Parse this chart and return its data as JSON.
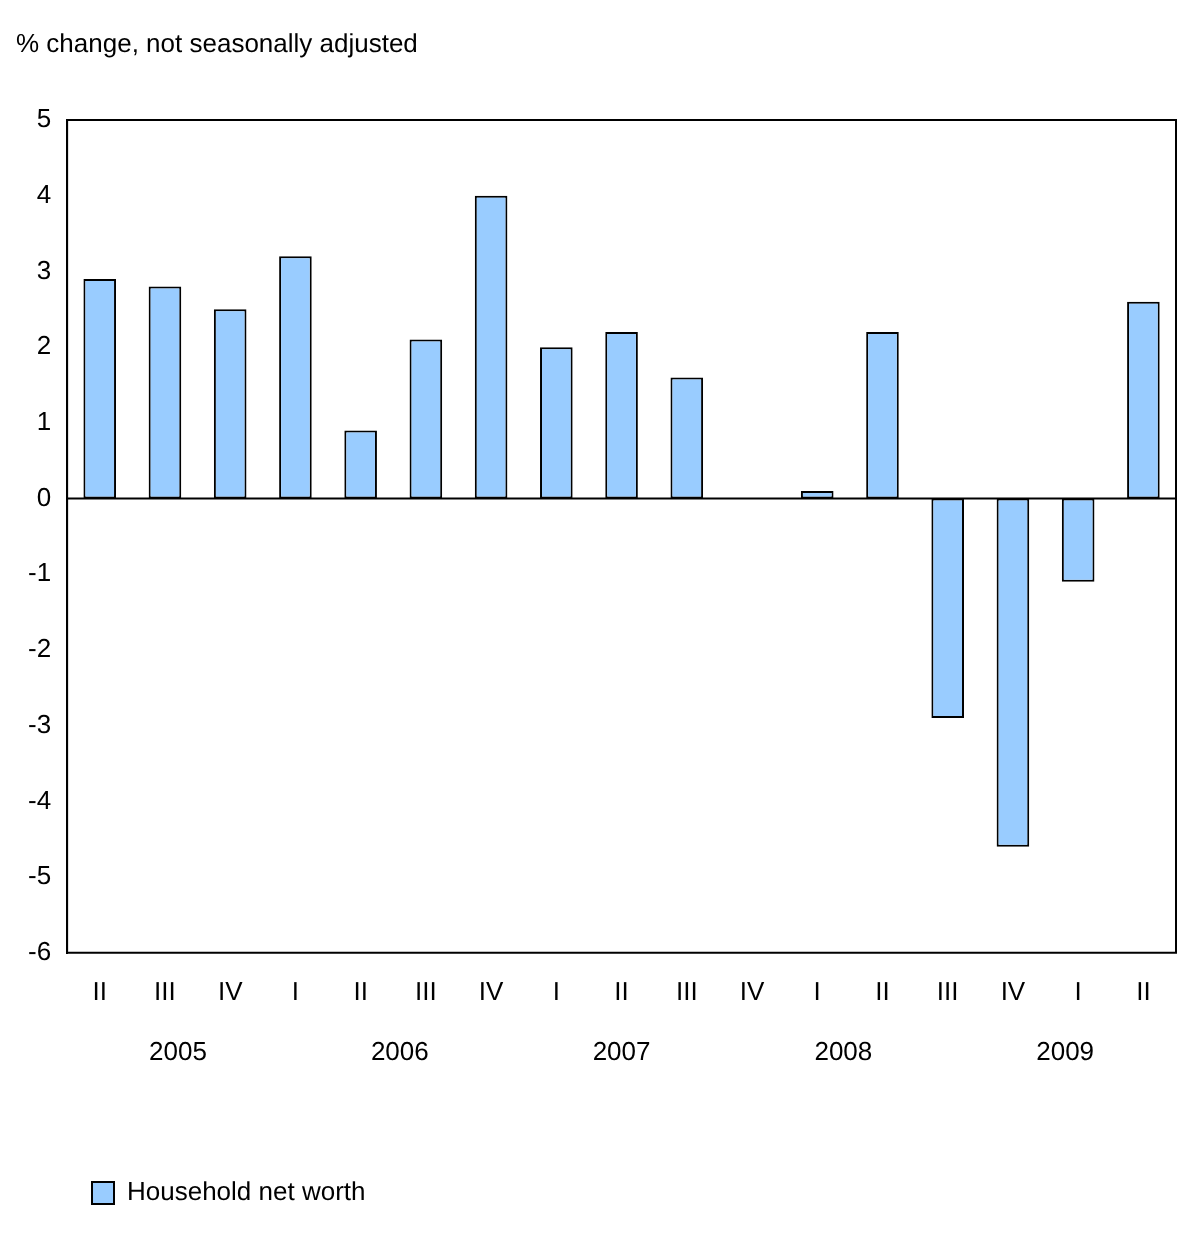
{
  "chart_data": {
    "type": "bar",
    "ylabel": "% change, not seasonally adjusted",
    "categories": [
      "II",
      "III",
      "IV",
      "I",
      "II",
      "III",
      "IV",
      "I",
      "II",
      "III",
      "IV",
      "I",
      "II",
      "III",
      "IV",
      "I",
      "II"
    ],
    "series": [
      {
        "name": "Household net worth",
        "color": "#99ccff",
        "values": [
          2.9,
          2.8,
          2.5,
          3.2,
          0.9,
          2.1,
          4.0,
          2.0,
          2.2,
          1.6,
          0,
          0.1,
          2.2,
          -2.9,
          -4.6,
          -1.1,
          2.6
        ]
      }
    ],
    "ylim": [
      -6,
      5
    ],
    "yticks": [
      -6,
      -5,
      -4,
      -3,
      -2,
      -1,
      0,
      1,
      2,
      3,
      4,
      5
    ],
    "annotations": [
      "2005",
      "2006",
      "2007",
      "2008",
      "2009"
    ],
    "legend": "bottom left"
  }
}
